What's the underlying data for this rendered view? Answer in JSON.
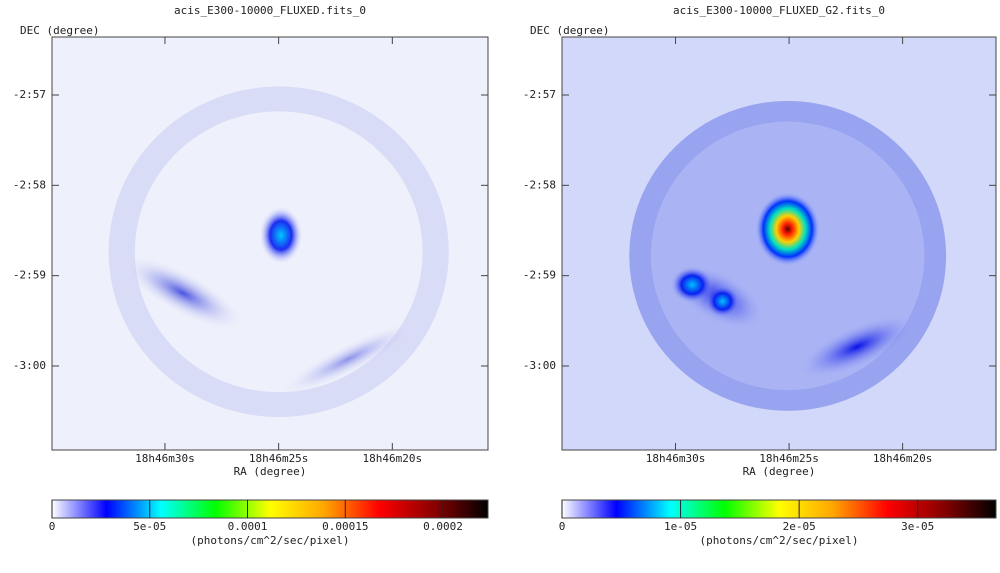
{
  "chart_data": [
    {
      "type": "image",
      "title": "acis_E300-10000_FLUXED.fits_0",
      "xlabel": "RA (degree)",
      "ylabel": "DEC (degree)",
      "xlim": [
        281.6457,
        281.5658
      ],
      "ylim": [
        -3.0155,
        -2.9393
      ],
      "xticks": [
        {
          "value": 281.625,
          "label": "18h46m30s"
        },
        {
          "value": 281.604167,
          "label": "18h46m25s"
        },
        {
          "value": 281.583333,
          "label": "18h46m20s"
        }
      ],
      "yticks": [
        {
          "value": -2.95,
          "label": "-2:57"
        },
        {
          "value": -2.966667,
          "label": "-2:58"
        },
        {
          "value": -2.983333,
          "label": "-2:59"
        },
        {
          "value": -3.0,
          "label": "-3:00"
        }
      ],
      "colorbar": {
        "label": "(photons/cm^2/sec/pixel)",
        "clim": [
          0,
          0.000223
        ],
        "ticks": [
          0,
          {
            "value": 5e-05,
            "label": "5e-05"
          },
          0.0001,
          0.00015,
          0.0002
        ],
        "colormap": [
          "#ffffff",
          "#0000ff",
          "#00ffff",
          "#00ff00",
          "#ffff00",
          "#ffa500",
          "#ff0000",
          "#8b0000",
          "#000000"
        ]
      }
    },
    {
      "type": "image",
      "title": "acis_E300-10000_FLUXED_G2.fits_0",
      "xlabel": "RA (degree)",
      "ylabel": "DEC (degree)",
      "xlim": [
        281.64583,
        281.5662
      ],
      "ylim": [
        -3.0155,
        -2.9393
      ],
      "xticks": [
        {
          "value": 281.625,
          "label": "18h46m30s"
        },
        {
          "value": 281.604167,
          "label": "18h46m25s"
        },
        {
          "value": 281.583333,
          "label": "18h46m20s"
        }
      ],
      "yticks": [
        {
          "value": -2.95,
          "label": "-2:57"
        },
        {
          "value": -2.966667,
          "label": "-2:58"
        },
        {
          "value": -2.983333,
          "label": "-2:59"
        },
        {
          "value": -3.0,
          "label": "-3:00"
        }
      ],
      "colorbar": {
        "label": "(photons/cm^2/sec/pixel)",
        "clim": [
          0,
          3.66e-05
        ],
        "ticks": [
          0,
          {
            "value": 1e-05,
            "label": "1e-05"
          },
          {
            "value": 2e-05,
            "label": "2e-05"
          },
          {
            "value": 3e-05,
            "label": "3e-05"
          }
        ],
        "colormap": [
          "#ffffff",
          "#0000ff",
          "#00ffff",
          "#00ff00",
          "#ffff00",
          "#ffa500",
          "#ff0000",
          "#8b0000",
          "#000000"
        ]
      }
    }
  ]
}
